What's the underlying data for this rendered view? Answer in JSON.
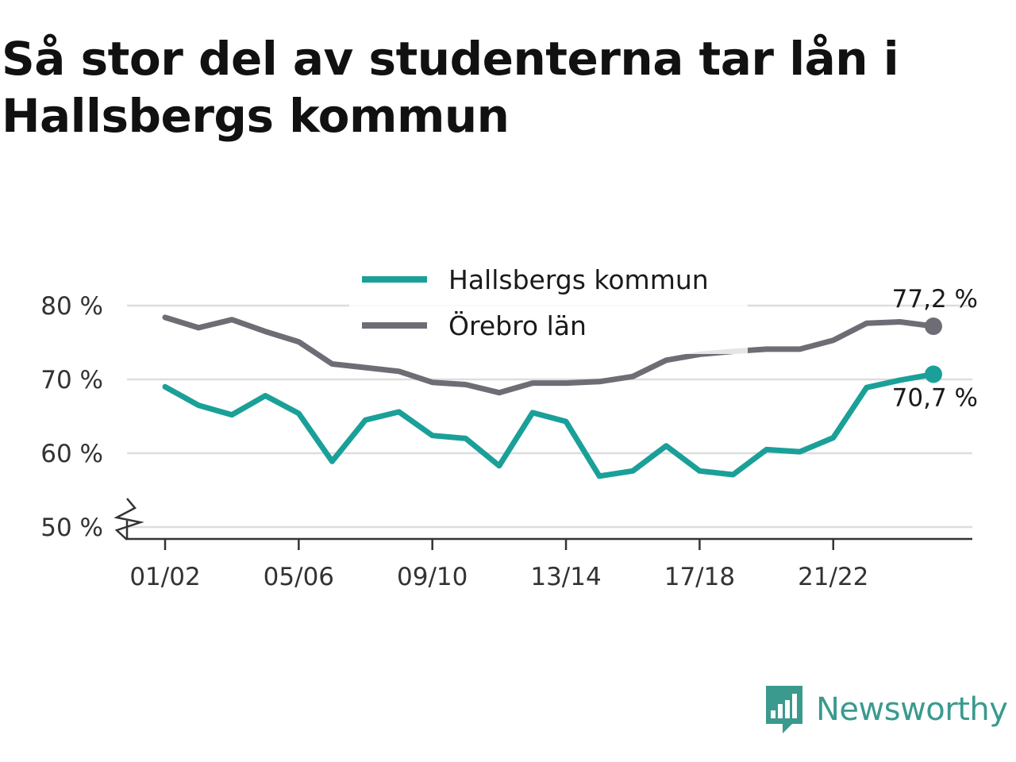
{
  "title": "Så stor del av studenterna tar lån i Hallsbergs kommun",
  "brand": {
    "name": "Newsworthy",
    "color": "#3a9a8e",
    "icon": "bar-chart-speech-bubble-icon"
  },
  "chart_data": {
    "type": "line",
    "title": "Så stor del av studenterna tar lån i Hallsbergs kommun",
    "xlabel": "",
    "ylabel": "",
    "x": [
      "01/02",
      "02/03",
      "03/04",
      "04/05",
      "05/06",
      "06/07",
      "07/08",
      "08/09",
      "09/10",
      "10/11",
      "11/12",
      "12/13",
      "13/14",
      "14/15",
      "15/16",
      "16/17",
      "17/18",
      "18/19",
      "19/20",
      "20/21",
      "21/22",
      "22/23",
      "23/24",
      "24/25"
    ],
    "x_tick_labels": [
      "01/02",
      "05/06",
      "09/10",
      "13/14",
      "17/18",
      "21/22"
    ],
    "y_tick_labels": [
      "50 %",
      "60 %",
      "70 %",
      "80 %"
    ],
    "y_ticks": [
      50,
      60,
      70,
      80
    ],
    "ylim": [
      48,
      82
    ],
    "y_axis_break": true,
    "grid": true,
    "legend_position": "top-center",
    "series": [
      {
        "name": "Hallsbergs kommun",
        "color": "#1aa098",
        "values": [
          69.0,
          66.5,
          65.2,
          67.8,
          65.4,
          58.9,
          64.5,
          65.6,
          62.4,
          62.0,
          58.3,
          65.5,
          64.3,
          56.9,
          57.6,
          61.0,
          57.6,
          57.1,
          60.5,
          60.2,
          62.1,
          68.9,
          69.9,
          70.7
        ],
        "end_label": "70,7 %"
      },
      {
        "name": "Örebro län",
        "color": "#6e6d75",
        "values": [
          78.4,
          77.0,
          78.1,
          76.5,
          75.1,
          72.1,
          71.6,
          71.1,
          69.6,
          69.3,
          68.2,
          69.5,
          69.5,
          69.7,
          70.4,
          72.6,
          73.4,
          73.8,
          74.1,
          74.1,
          75.3,
          77.6,
          77.8,
          77.2
        ],
        "end_label": "77,2 %"
      }
    ]
  }
}
